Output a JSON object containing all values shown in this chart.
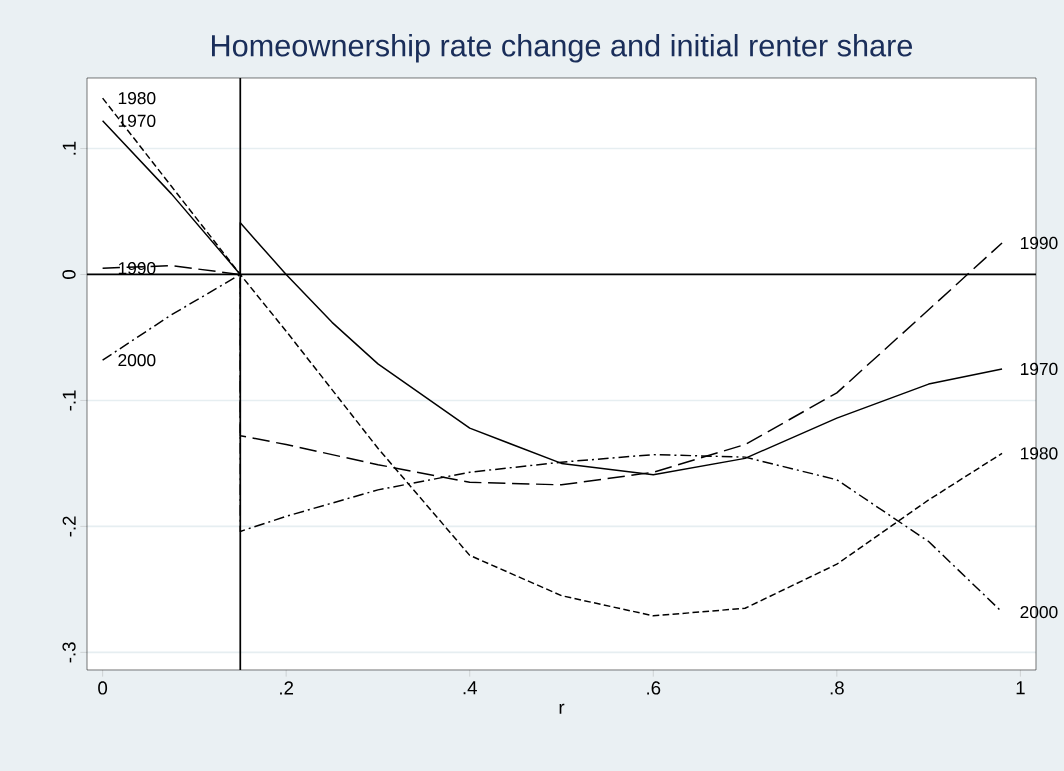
{
  "chart_data": {
    "type": "line",
    "title": "Homeownership rate change and initial renter share",
    "xlabel": "r",
    "xlim": [
      -0.017,
      1.017
    ],
    "ylim": [
      -0.314,
      0.156
    ],
    "xticks": [
      0,
      {
        "value": 0.2,
        "label": ".2"
      },
      {
        "value": 0.4,
        "label": ".4"
      },
      {
        "value": 0.6,
        "label": ".6"
      },
      {
        "value": 0.8,
        "label": ".8"
      },
      1
    ],
    "yticks": [
      {
        "value": -0.3,
        "label": "-.3"
      },
      {
        "value": -0.2,
        "label": "-.2"
      },
      {
        "value": -0.1,
        "label": "-.1"
      },
      0,
      {
        "value": 0.1,
        "label": ".1"
      }
    ],
    "grid": "y",
    "marker": "none",
    "ref_lines": [
      {
        "axis": "x",
        "value": 0.15,
        "color": "#000000"
      },
      {
        "axis": "y",
        "value": 0,
        "color": "#000000"
      }
    ],
    "series": [
      {
        "name": "1970",
        "color": "#000000",
        "line_style": "solid",
        "x": [
          0,
          0.075,
          0.15,
          0.15,
          0.2,
          0.25,
          0.3,
          0.4,
          0.5,
          0.6,
          0.7,
          0.8,
          0.9,
          0.98
        ],
        "values": [
          0.122,
          0.064,
          0,
          0.041,
          0.0,
          -0.038,
          -0.071,
          -0.122,
          -0.15,
          -0.159,
          -0.146,
          -0.114,
          -0.087,
          -0.075
        ]
      },
      {
        "name": "1980",
        "color": "#000000",
        "line_style": "dashed",
        "x": [
          0,
          0.075,
          0.15,
          0.2,
          0.3,
          0.4,
          0.5,
          0.6,
          0.7,
          0.8,
          0.9,
          0.98
        ],
        "values": [
          0.14,
          0.07,
          0,
          -0.045,
          -0.138,
          -0.223,
          -0.255,
          -0.271,
          -0.265,
          -0.23,
          -0.179,
          -0.142
        ]
      },
      {
        "name": "1990",
        "color": "#000000",
        "line_style": "longdashed",
        "x": [
          0,
          0.075,
          0.15,
          0.15,
          0.2,
          0.3,
          0.4,
          0.5,
          0.6,
          0.7,
          0.8,
          0.9,
          0.98
        ],
        "values": [
          0.005,
          0.007,
          0,
          -0.128,
          -0.135,
          -0.151,
          -0.165,
          -0.167,
          -0.157,
          -0.135,
          -0.094,
          -0.028,
          0.025
        ]
      },
      {
        "name": "2000",
        "color": "#000000",
        "line_style": "dashdotted",
        "x": [
          0,
          0.075,
          0.15,
          0.15,
          0.2,
          0.3,
          0.4,
          0.5,
          0.6,
          0.7,
          0.8,
          0.9,
          0.98
        ],
        "values": [
          -0.068,
          -0.032,
          0,
          -0.204,
          -0.192,
          -0.171,
          -0.157,
          -0.149,
          -0.143,
          -0.145,
          -0.163,
          -0.212,
          -0.268
        ]
      }
    ]
  }
}
